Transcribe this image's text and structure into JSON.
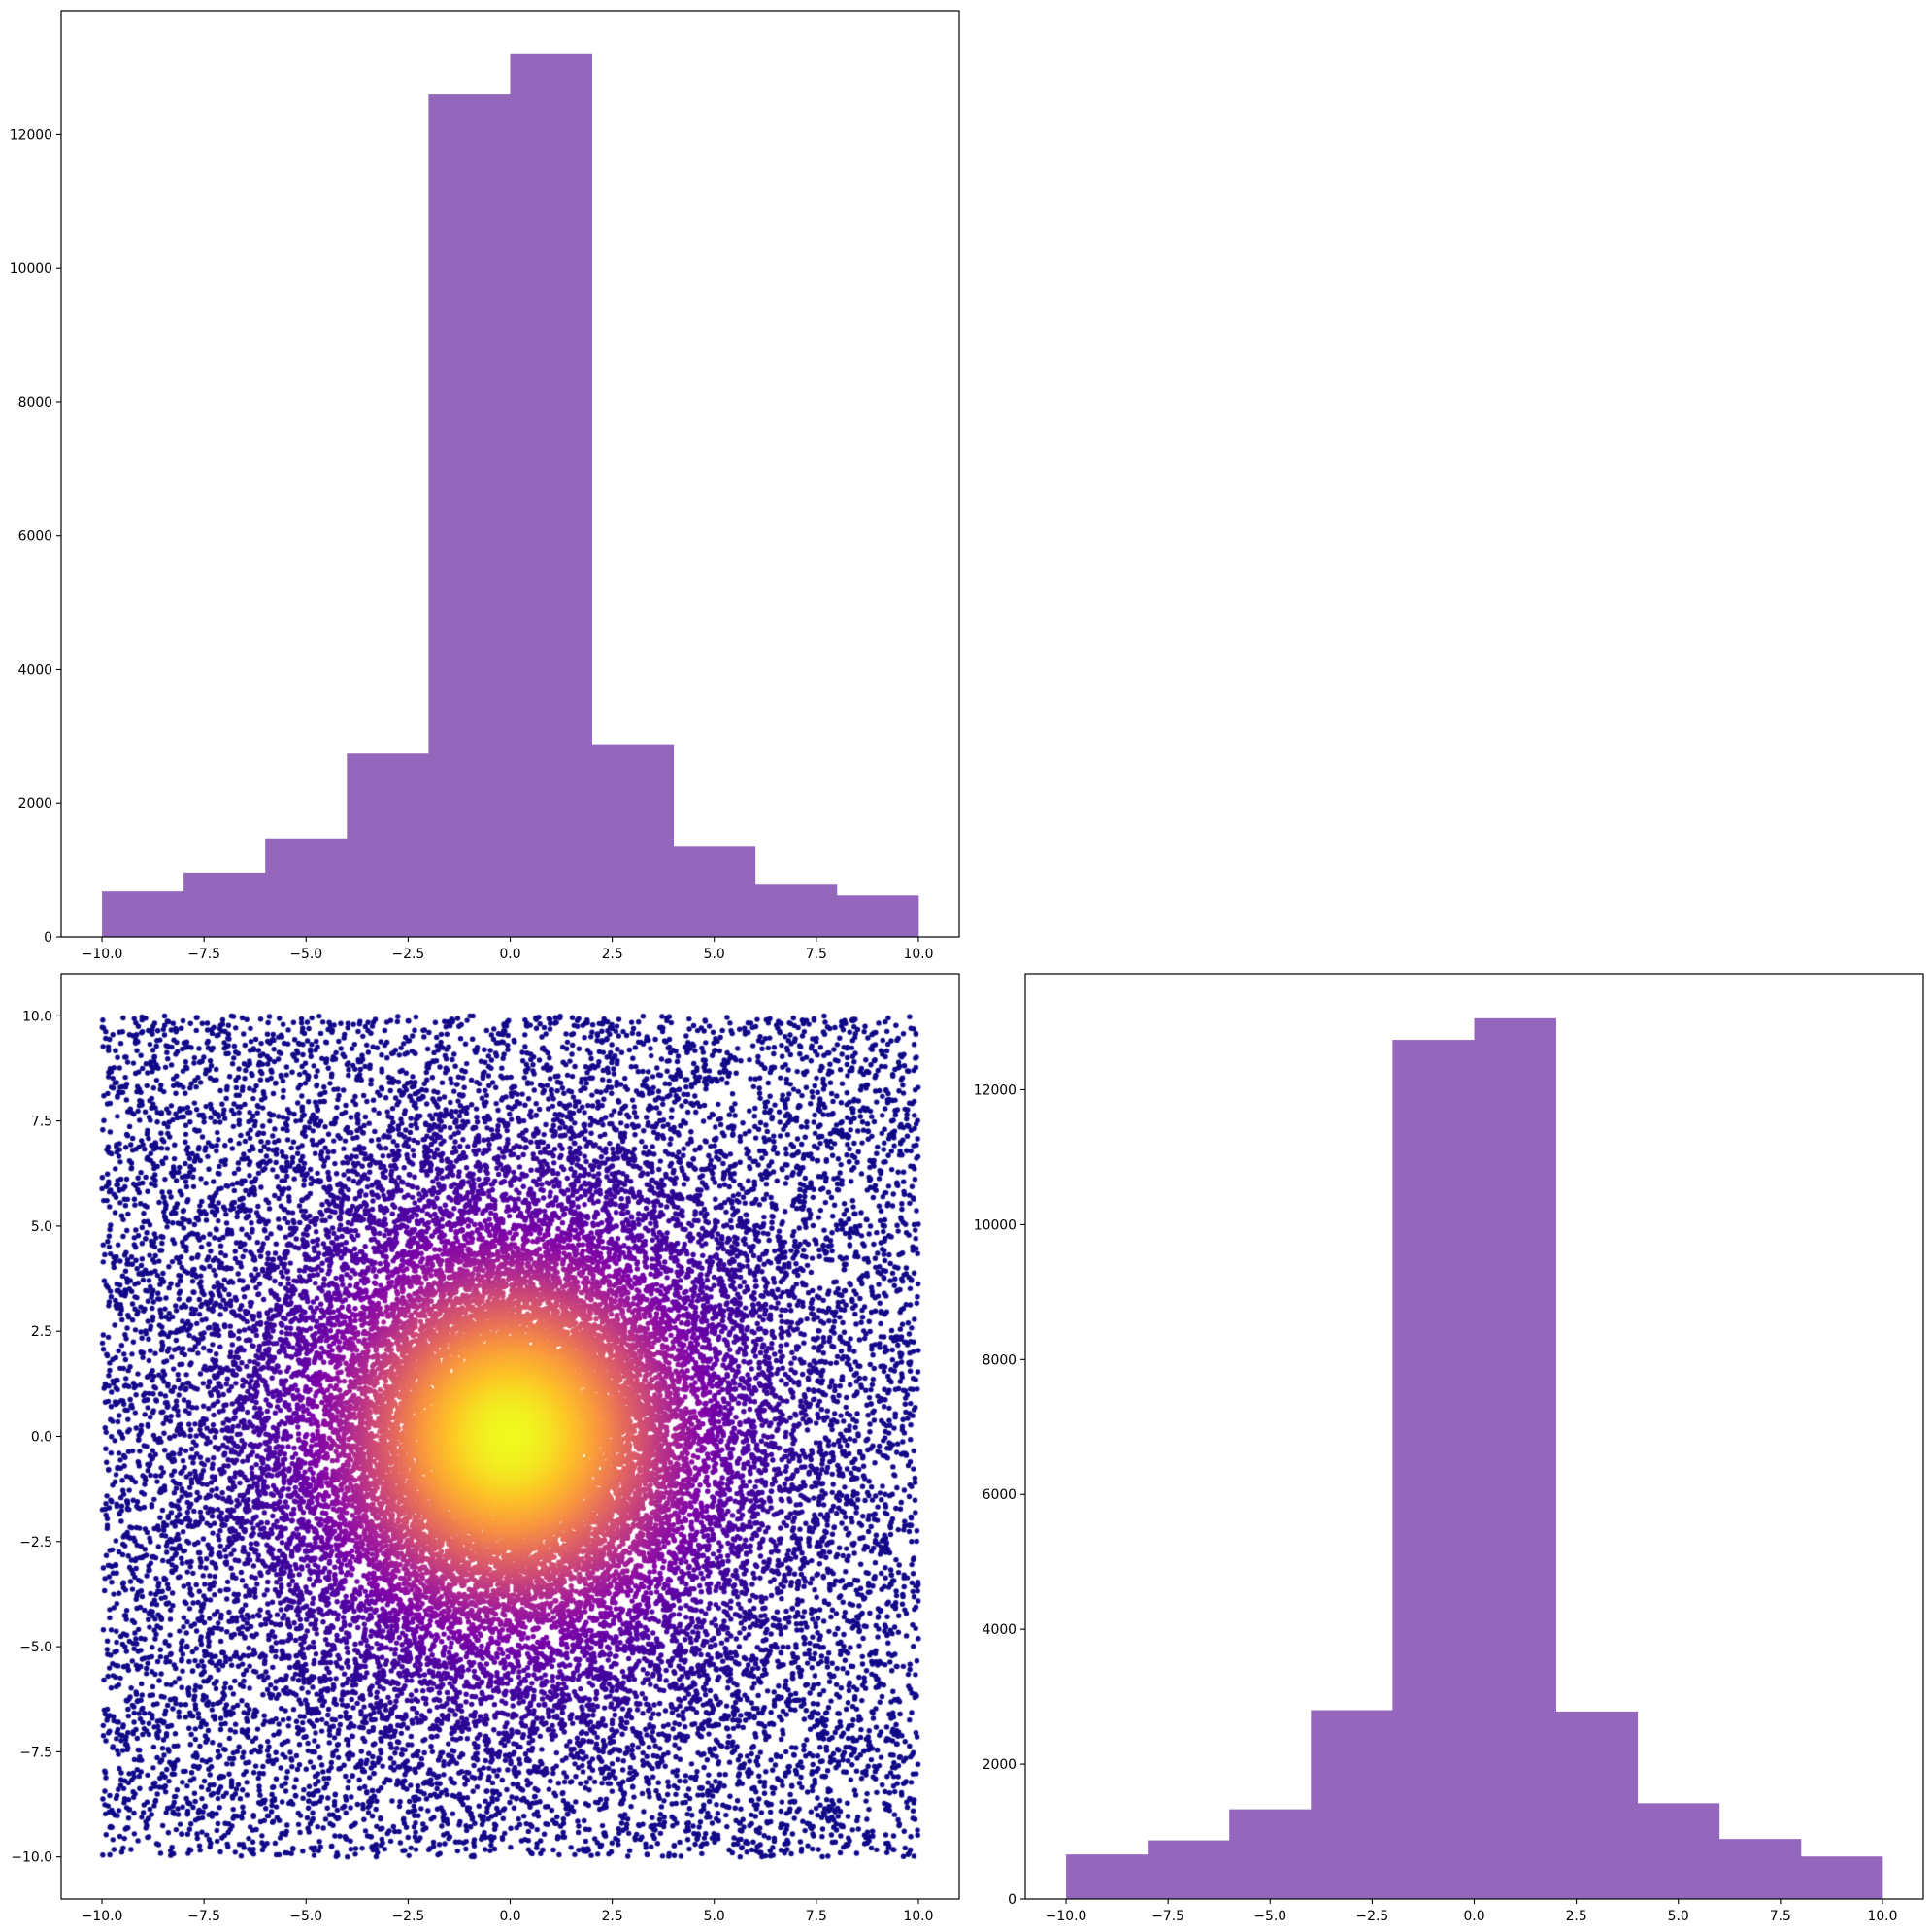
{
  "colors": {
    "hist_fill": "#9467bd",
    "scatter_colormap": "plasma",
    "background": "#ffffff"
  },
  "chart_data": [
    {
      "id": "hist-x",
      "type": "bar",
      "subtype": "histogram",
      "bin_edges": [
        -10,
        -8,
        -6,
        -4,
        -2,
        0,
        2,
        4,
        6,
        8,
        10
      ],
      "values": [
        680,
        960,
        1470,
        2740,
        12600,
        13200,
        2880,
        1360,
        780,
        620
      ],
      "xlim": [
        -11,
        11
      ],
      "ylim": [
        0,
        13850
      ],
      "xticks": [
        -10,
        -7.5,
        -5,
        -2.5,
        0,
        2.5,
        5,
        7.5,
        10
      ],
      "xtick_labels": [
        "−10.0",
        "−7.5",
        "−5.0",
        "−2.5",
        "0.0",
        "2.5",
        "5.0",
        "7.5",
        "10.0"
      ],
      "yticks": [
        0,
        2000,
        4000,
        6000,
        8000,
        10000,
        12000
      ],
      "ytick_labels": [
        "0",
        "2000",
        "4000",
        "6000",
        "8000",
        "10000",
        "12000"
      ],
      "color": "#9467bd",
      "grid": false,
      "title": "",
      "xlabel": "",
      "ylabel": ""
    },
    {
      "id": "scatter",
      "type": "scatter",
      "description": "40000 points uniform on [-10,10] x [-10,10] with a strong Gaussian concentration at the origin; points colored by local density (plasma colormap, dark purple sparse to yellow at the dense center)",
      "n_points": 40000,
      "x_range": [
        -10,
        10
      ],
      "y_range": [
        -10,
        10
      ],
      "density_peak": [
        0,
        0
      ],
      "colormap": "plasma",
      "xlim": [
        -11,
        11
      ],
      "ylim": [
        -11,
        11
      ],
      "xticks": [
        -10,
        -7.5,
        -5,
        -2.5,
        0,
        2.5,
        5,
        7.5,
        10
      ],
      "xtick_labels": [
        "−10.0",
        "−7.5",
        "−5.0",
        "−2.5",
        "0.0",
        "2.5",
        "5.0",
        "7.5",
        "10.0"
      ],
      "yticks": [
        -10,
        -7.5,
        -5,
        -2.5,
        0,
        2.5,
        5,
        7.5,
        10
      ],
      "ytick_labels": [
        "−10.0",
        "−7.5",
        "−5.0",
        "−2.5",
        "0.0",
        "2.5",
        "5.0",
        "7.5",
        "10.0"
      ],
      "grid": false,
      "title": "",
      "xlabel": "",
      "ylabel": ""
    },
    {
      "id": "hist-y",
      "type": "bar",
      "subtype": "histogram",
      "bin_edges": [
        -10,
        -8,
        -6,
        -4,
        -2,
        0,
        2,
        4,
        6,
        8,
        10
      ],
      "values": [
        660,
        870,
        1330,
        2800,
        12740,
        13060,
        2780,
        1420,
        890,
        630
      ],
      "xlim": [
        -11,
        11
      ],
      "ylim": [
        0,
        13720
      ],
      "xticks": [
        -10,
        -7.5,
        -5,
        -2.5,
        0,
        2.5,
        5,
        7.5,
        10
      ],
      "xtick_labels": [
        "−10.0",
        "−7.5",
        "−5.0",
        "−2.5",
        "0.0",
        "2.5",
        "5.0",
        "7.5",
        "10.0"
      ],
      "yticks": [
        0,
        2000,
        4000,
        6000,
        8000,
        10000,
        12000
      ],
      "ytick_labels": [
        "0",
        "2000",
        "4000",
        "6000",
        "8000",
        "10000",
        "12000"
      ],
      "color": "#9467bd",
      "grid": false,
      "title": "",
      "xlabel": "",
      "ylabel": ""
    }
  ]
}
